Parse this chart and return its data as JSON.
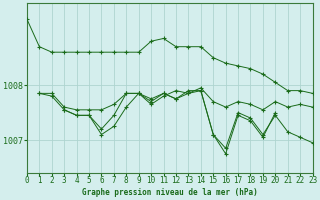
{
  "title": "Graphe pression niveau de la mer (hPa)",
  "bg_color": "#d4eeed",
  "grid_color": "#aed4d0",
  "line_color": "#1a6b1a",
  "spine_color": "#3a7a3a",
  "x_ticks": [
    0,
    1,
    2,
    3,
    4,
    5,
    6,
    7,
    8,
    9,
    10,
    11,
    12,
    13,
    14,
    15,
    16,
    17,
    18,
    19,
    20,
    21,
    22,
    23
  ],
  "y_ticks": [
    1007,
    1008
  ],
  "ylim": [
    1006.4,
    1009.5
  ],
  "xlim": [
    0,
    23
  ],
  "series": [
    [
      1009.2,
      1008.7,
      1008.6,
      1008.6,
      1008.6,
      1008.6,
      1008.6,
      1008.6,
      1008.6,
      1008.6,
      1008.8,
      1008.85,
      1008.7,
      1008.7,
      1008.7,
      1008.5,
      1008.4,
      1008.35,
      1008.3,
      1008.2,
      1008.05,
      1007.9,
      1007.9,
      1007.85
    ],
    [
      null,
      1007.85,
      1007.85,
      1007.6,
      1007.55,
      1007.55,
      1007.55,
      1007.65,
      1007.85,
      1007.85,
      1007.75,
      1007.85,
      1007.75,
      1007.85,
      1007.95,
      1007.7,
      1007.6,
      1007.7,
      1007.65,
      1007.55,
      1007.7,
      1007.6,
      1007.65,
      1007.6
    ],
    [
      null,
      1007.85,
      1007.8,
      1007.55,
      1007.45,
      1007.45,
      1007.2,
      1007.45,
      1007.85,
      1007.85,
      1007.7,
      1007.85,
      1007.75,
      1007.9,
      1007.9,
      1007.1,
      1006.85,
      1007.5,
      1007.4,
      1007.1,
      1007.45,
      1007.15,
      1007.05,
      1006.95
    ],
    [
      null,
      null,
      null,
      1007.55,
      1007.45,
      1007.45,
      1007.1,
      1007.25,
      1007.6,
      1007.85,
      1007.65,
      1007.8,
      1007.9,
      1007.85,
      1007.9,
      1007.1,
      1006.75,
      1007.45,
      1007.35,
      1007.05,
      1007.5,
      null,
      null,
      null
    ]
  ]
}
